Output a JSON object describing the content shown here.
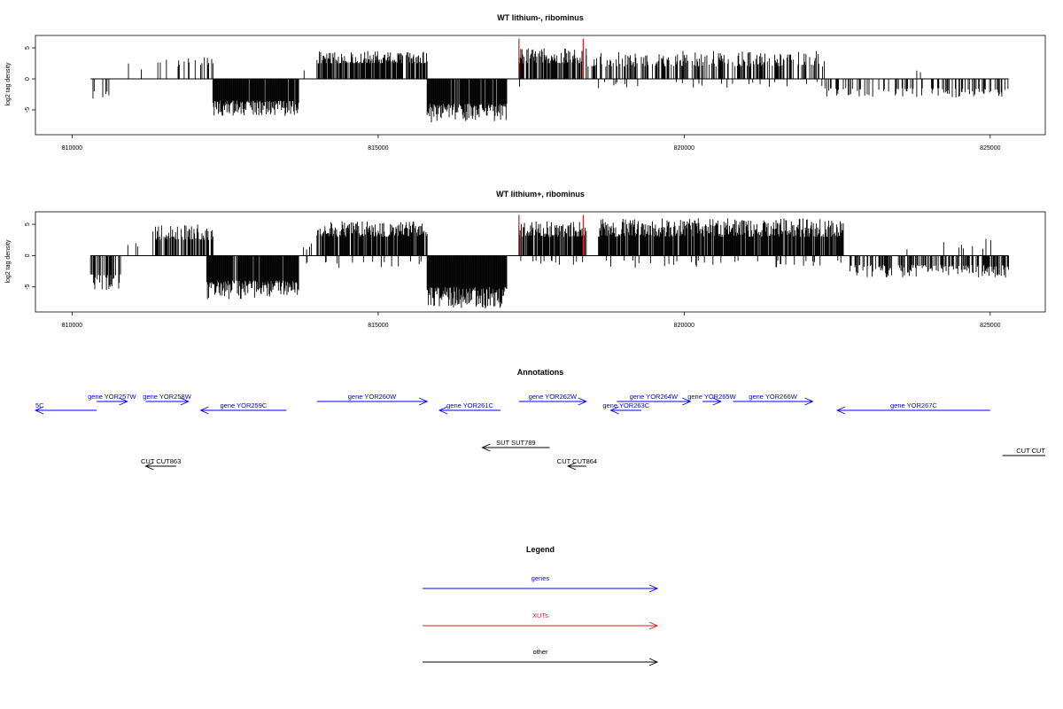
{
  "chart_data": [
    {
      "type": "bar",
      "title": "WT lithium-, ribominus",
      "xlabel": "",
      "ylabel": "log2 tag density",
      "xlim": [
        809400,
        825900
      ],
      "ylim": [
        -9,
        7
      ],
      "x_ticks": [
        810000,
        815000,
        820000,
        825000
      ],
      "x_tick_labels": [
        "810000",
        "815000",
        "820000",
        "825000"
      ],
      "y_ticks": [
        5,
        0,
        -5
      ],
      "y_tick_labels": [
        "5",
        "0",
        "-5"
      ],
      "baseline_range": [
        810300,
        825300
      ],
      "segments": [
        {
          "start": 810300,
          "end": 810800,
          "sign": -1,
          "base": 2.0,
          "peak": 3.5,
          "density": 0.15
        },
        {
          "start": 810900,
          "end": 811600,
          "sign": 1,
          "base": 1.2,
          "peak": 3.5,
          "density": 0.08
        },
        {
          "start": 811700,
          "end": 812300,
          "sign": 1,
          "base": 2.0,
          "peak": 3.5,
          "density": 0.15
        },
        {
          "start": 812300,
          "end": 813700,
          "sign": -1,
          "base": 3.5,
          "peak": 6.0,
          "density": 0.95
        },
        {
          "start": 813600,
          "end": 814000,
          "sign": 1,
          "base": 1.0,
          "peak": 2.0,
          "density": 0.05
        },
        {
          "start": 814000,
          "end": 815800,
          "sign": 1,
          "base": 2.5,
          "peak": 4.5,
          "density": 0.8
        },
        {
          "start": 815800,
          "end": 817100,
          "sign": -1,
          "base": 4.0,
          "peak": 7.0,
          "density": 0.95
        },
        {
          "start": 817100,
          "end": 817400,
          "sign": -1,
          "base": 1.0,
          "peak": 1.5,
          "density": 0.05
        },
        {
          "start": 817300,
          "end": 818400,
          "sign": 1,
          "base": 2.5,
          "peak": 5.0,
          "density": 0.7
        },
        {
          "start": 818400,
          "end": 822300,
          "sign": 1,
          "base": 2.0,
          "peak": 4.5,
          "density": 0.45
        },
        {
          "start": 818500,
          "end": 822300,
          "sign": -1,
          "base": 0.5,
          "peak": 1.5,
          "density": 0.05
        },
        {
          "start": 822300,
          "end": 825300,
          "sign": -1,
          "base": 1.5,
          "peak": 3.0,
          "density": 0.3
        },
        {
          "start": 823700,
          "end": 824100,
          "sign": 1,
          "base": 1.0,
          "peak": 2.5,
          "density": 0.05
        }
      ],
      "highlight_x": [
        817300,
        818350
      ],
      "highlight_height": 6.5,
      "highlight_color": "#e31a1c",
      "bar_color": "#000000"
    },
    {
      "type": "bar",
      "title": "WT lithium+, ribominus",
      "xlabel": "",
      "ylabel": "log2 tag density",
      "xlim": [
        809400,
        825900
      ],
      "ylim": [
        -9,
        7
      ],
      "x_ticks": [
        810000,
        815000,
        820000,
        825000
      ],
      "x_tick_labels": [
        "810000",
        "815000",
        "820000",
        "825000"
      ],
      "y_ticks": [
        5,
        0,
        -5
      ],
      "y_tick_labels": [
        "5",
        "0",
        "-5"
      ],
      "baseline_range": [
        810300,
        825300
      ],
      "segments": [
        {
          "start": 810300,
          "end": 810800,
          "sign": -1,
          "base": 3.0,
          "peak": 5.5,
          "density": 0.6
        },
        {
          "start": 810900,
          "end": 811300,
          "sign": 1,
          "base": 1.0,
          "peak": 2.0,
          "density": 0.1
        },
        {
          "start": 811300,
          "end": 812300,
          "sign": 1,
          "base": 2.5,
          "peak": 5.0,
          "density": 0.7
        },
        {
          "start": 812200,
          "end": 813700,
          "sign": -1,
          "base": 4.0,
          "peak": 7.0,
          "density": 0.95
        },
        {
          "start": 813700,
          "end": 814000,
          "sign": 1,
          "base": 1.0,
          "peak": 2.0,
          "density": 0.1
        },
        {
          "start": 814000,
          "end": 815800,
          "sign": 1,
          "base": 3.0,
          "peak": 5.5,
          "density": 0.85
        },
        {
          "start": 813800,
          "end": 815800,
          "sign": -1,
          "base": 0.8,
          "peak": 2.0,
          "density": 0.1
        },
        {
          "start": 815800,
          "end": 817100,
          "sign": -1,
          "base": 5.0,
          "peak": 8.5,
          "density": 0.98
        },
        {
          "start": 817300,
          "end": 818400,
          "sign": 1,
          "base": 3.0,
          "peak": 5.5,
          "density": 0.85
        },
        {
          "start": 817200,
          "end": 818500,
          "sign": -1,
          "base": 0.8,
          "peak": 1.5,
          "density": 0.08
        },
        {
          "start": 818600,
          "end": 822600,
          "sign": 1,
          "base": 3.0,
          "peak": 6.0,
          "density": 0.9
        },
        {
          "start": 818600,
          "end": 822600,
          "sign": -1,
          "base": 0.8,
          "peak": 2.0,
          "density": 0.1
        },
        {
          "start": 822700,
          "end": 825300,
          "sign": -1,
          "base": 1.5,
          "peak": 3.5,
          "density": 0.55
        },
        {
          "start": 823500,
          "end": 825200,
          "sign": 1,
          "base": 1.0,
          "peak": 2.8,
          "density": 0.08
        }
      ],
      "highlight_x": [
        817300,
        818350
      ],
      "highlight_height": 6.5,
      "highlight_color": "#e31a1c",
      "bar_color": "#000000"
    }
  ],
  "annotations": {
    "title": "Annotations",
    "xlim": [
      809400,
      825900
    ],
    "genes_color": "#0000ff",
    "other_color": "#000000",
    "features": [
      {
        "label": "5C",
        "start": 809400,
        "end": 810400,
        "dir": "left",
        "row": 0,
        "color": "#0000ff"
      },
      {
        "label": "gene YOR257W",
        "start": 810400,
        "end": 810900,
        "dir": "right",
        "row": 1,
        "color": "#0000ff"
      },
      {
        "label": "gene YOR258W",
        "start": 811200,
        "end": 811900,
        "dir": "right",
        "row": 1,
        "color": "#0000ff"
      },
      {
        "label": "gene YOR259C",
        "start": 812100,
        "end": 813500,
        "dir": "left",
        "row": 0,
        "color": "#0000ff"
      },
      {
        "label": "gene YOR260W",
        "start": 814000,
        "end": 815800,
        "dir": "right",
        "row": 1,
        "color": "#0000ff"
      },
      {
        "label": "gene YOR261C",
        "start": 816000,
        "end": 817000,
        "dir": "left",
        "row": 0,
        "color": "#0000ff"
      },
      {
        "label": "gene YOR262W",
        "start": 817300,
        "end": 818400,
        "dir": "right",
        "row": 1,
        "color": "#0000ff"
      },
      {
        "label": "gene YOR263C",
        "start": 818800,
        "end": 819300,
        "dir": "left",
        "row": 0,
        "color": "#0000ff"
      },
      {
        "label": "gene YOR264W",
        "start": 818900,
        "end": 820100,
        "dir": "right",
        "row": 1,
        "color": "#0000ff"
      },
      {
        "label": "gene YOR265W",
        "start": 820300,
        "end": 820600,
        "dir": "right",
        "row": 1,
        "color": "#0000ff"
      },
      {
        "label": "gene YOR266W",
        "start": 820800,
        "end": 822100,
        "dir": "right",
        "row": 1,
        "color": "#0000ff"
      },
      {
        "label": "gene YOR267C",
        "start": 822500,
        "end": 825000,
        "dir": "left",
        "row": 0,
        "color": "#0000ff"
      },
      {
        "label": "SUT SUT789",
        "start": 816700,
        "end": 817800,
        "dir": "left",
        "row": 2,
        "color": "#000000"
      },
      {
        "label": "CUT CUT863",
        "start": 811200,
        "end": 811700,
        "dir": "left",
        "row": 3,
        "color": "#000000"
      },
      {
        "label": "CUT CUT864",
        "start": 818100,
        "end": 818400,
        "dir": "left",
        "row": 3,
        "color": "#000000"
      },
      {
        "label": "CUT CUT",
        "start": 825200,
        "end": 825900,
        "dir": "none",
        "row": 4,
        "color": "#000000"
      }
    ]
  },
  "legend": {
    "title": "Legend",
    "items": [
      {
        "label": "genes",
        "color": "#0000ff"
      },
      {
        "label": "XUTs",
        "color": "#e31a1c"
      },
      {
        "label": "other",
        "color": "#000000"
      }
    ]
  }
}
